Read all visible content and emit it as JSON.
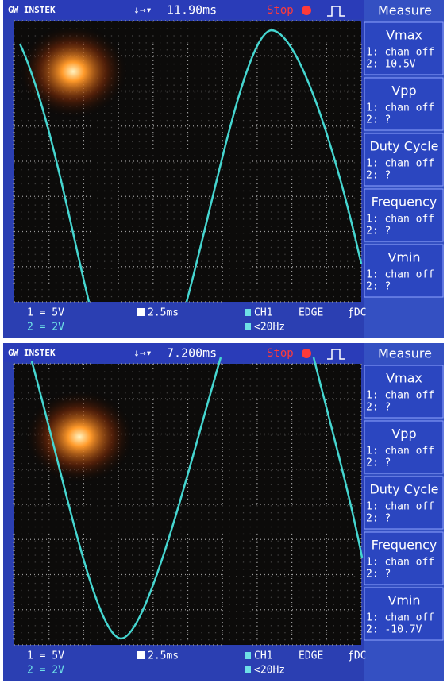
{
  "screens": [
    {
      "brand": "GW INSTEK",
      "time": "11.90ms",
      "status": "Stop",
      "menu_title": "Measure",
      "measurements": [
        {
          "name": "Vmax",
          "lines": [
            "1: chan off",
            "2: 10.5V"
          ]
        },
        {
          "name": "Vpp",
          "lines": [
            "1: chan off",
            "2:   ?"
          ]
        },
        {
          "name": "Duty Cycle",
          "lines": [
            "1: chan off",
            "2:   ?"
          ]
        },
        {
          "name": "Frequency",
          "lines": [
            "1: chan off",
            "2:   ?"
          ]
        },
        {
          "name": "Vmin",
          "lines": [
            "1: chan off",
            "2:   ?"
          ]
        }
      ],
      "footer": {
        "ch1_scale": "1 = 5V",
        "ch2_scale": "2 = 2V",
        "timebase": "2.5ms",
        "trigger_source": "CH1",
        "trigger_type": "EDGE",
        "coupling": "ƒDC",
        "frequency": "<20Hz"
      }
    },
    {
      "brand": "GW INSTEK",
      "time": "7.200ms",
      "status": "Stop",
      "menu_title": "Measure",
      "measurements": [
        {
          "name": "Vmax",
          "lines": [
            "1: chan off",
            "2:   ?"
          ]
        },
        {
          "name": "Vpp",
          "lines": [
            "1: chan off",
            "2:   ?"
          ]
        },
        {
          "name": "Duty Cycle",
          "lines": [
            "1: chan off",
            "2:   ?"
          ]
        },
        {
          "name": "Frequency",
          "lines": [
            "1: chan off",
            "2:   ?"
          ]
        },
        {
          "name": "Vmin",
          "lines": [
            "1: chan off",
            "2: -10.7V"
          ]
        }
      ],
      "footer": {
        "ch1_scale": "1 = 5V",
        "ch2_scale": "2 = 2V",
        "timebase": "2.5ms",
        "trigger_source": "CH1",
        "trigger_type": "EDGE",
        "coupling": "ƒDC",
        "frequency": "<20Hz"
      }
    }
  ]
}
